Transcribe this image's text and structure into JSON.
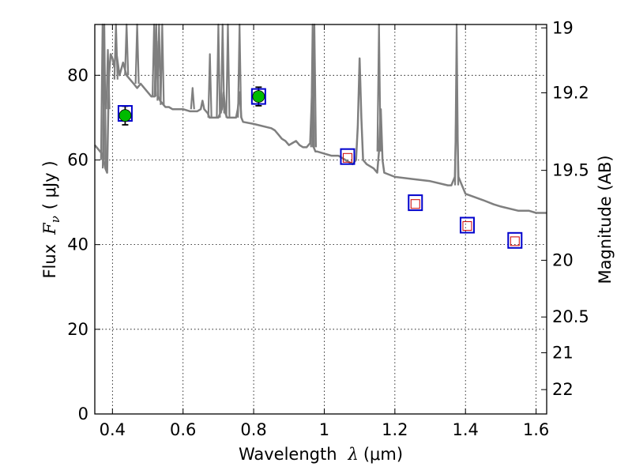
{
  "chart_data": {
    "type": "line",
    "xlabel": "Wavelength",
    "xlabel_symbol": "λ",
    "xlabel_unit": "(μm)",
    "ylabel": "Flux",
    "ylabel_symbol": "F",
    "ylabel_subscript": "ν",
    "ylabel_unit": "( μJy )",
    "y2label": "Magnitude (AB)",
    "xlim": [
      0.35,
      1.63
    ],
    "ylim": [
      0,
      92
    ],
    "grid": true,
    "x_ticks": [
      {
        "value": 0.4,
        "label": "0.4"
      },
      {
        "value": 0.6,
        "label": "0.6"
      },
      {
        "value": 0.8,
        "label": "0.8"
      },
      {
        "value": 1.0,
        "label": "1"
      },
      {
        "value": 1.2,
        "label": "1.2"
      },
      {
        "value": 1.4,
        "label": "1.4"
      },
      {
        "value": 1.6,
        "label": "1.6"
      }
    ],
    "y_ticks": [
      {
        "value": 0,
        "label": "0"
      },
      {
        "value": 20,
        "label": "20"
      },
      {
        "value": 40,
        "label": "40"
      },
      {
        "value": 60,
        "label": "60"
      },
      {
        "value": 80,
        "label": "80"
      }
    ],
    "y2_ticks": [
      {
        "label": "19",
        "magnitude": 19.0
      },
      {
        "label": "19.2",
        "magnitude": 19.2
      },
      {
        "label": "19.5",
        "magnitude": 19.5
      },
      {
        "label": "20",
        "magnitude": 20.0
      },
      {
        "label": "20.5",
        "magnitude": 20.5
      },
      {
        "label": "21",
        "magnitude": 21.0
      },
      {
        "label": "22",
        "magnitude": 22.0
      }
    ],
    "colors": {
      "model": "#7f7f7f",
      "observed_marker": "#00bb00",
      "model_box": "#0000cc",
      "predicted_marker": "#cc0000",
      "errorbar": "#000000"
    },
    "series": [
      {
        "kind": "model_spectrum",
        "x": [
          0.35,
          0.36,
          0.37,
          0.375,
          0.38,
          0.385,
          0.39,
          0.395,
          0.4,
          0.405,
          0.41,
          0.42,
          0.43,
          0.44,
          0.45,
          0.46,
          0.47,
          0.48,
          0.49,
          0.5,
          0.51,
          0.52,
          0.525,
          0.53,
          0.535,
          0.54,
          0.545,
          0.55,
          0.56,
          0.57,
          0.6,
          0.62,
          0.64,
          0.65,
          0.655,
          0.66,
          0.67,
          0.675,
          0.68,
          0.7,
          0.71,
          0.715,
          0.72,
          0.725,
          0.73,
          0.75,
          0.755,
          0.76,
          0.765,
          0.77,
          0.8,
          0.85,
          0.86,
          0.87,
          0.88,
          0.89,
          0.9,
          0.91,
          0.92,
          0.93,
          0.94,
          0.95,
          0.96,
          0.965,
          0.97,
          0.975,
          0.98,
          1.0,
          1.02,
          1.04,
          1.06,
          1.08,
          1.09,
          1.095,
          1.1,
          1.105,
          1.11,
          1.12,
          1.14,
          1.15,
          1.155,
          1.16,
          1.165,
          1.17,
          1.2,
          1.25,
          1.3,
          1.35,
          1.36,
          1.37,
          1.375,
          1.38,
          1.4,
          1.45,
          1.48,
          1.5,
          1.55,
          1.58,
          1.6,
          1.63
        ],
        "y": [
          63.5,
          62.5,
          61.5,
          60,
          58,
          57,
          80,
          85,
          84,
          82,
          86,
          80,
          83,
          80,
          79,
          78,
          77,
          78,
          77,
          76,
          75,
          75,
          88,
          75,
          74,
          73.5,
          73,
          72.5,
          72.5,
          72,
          72,
          71.5,
          71.5,
          72,
          74,
          72,
          71,
          70,
          70,
          70,
          72,
          76,
          71,
          70,
          70,
          70,
          72,
          76,
          70,
          69,
          68.5,
          67.5,
          67,
          66,
          65,
          64.5,
          63.5,
          64,
          64.5,
          63.5,
          63,
          63,
          64,
          75,
          63,
          62,
          62,
          61.5,
          61,
          61,
          60,
          59,
          60,
          68,
          84,
          70,
          60,
          59,
          58,
          57,
          62,
          72,
          60,
          57,
          56,
          55.5,
          55,
          54,
          54,
          56,
          75,
          56,
          52,
          50.5,
          49.5,
          49,
          48,
          48,
          47.5,
          47.5
        ],
        "spikes": [
          {
            "x": 0.372,
            "base": 60,
            "peak": 92
          },
          {
            "x": 0.377,
            "base": 58,
            "peak": 92
          },
          {
            "x": 0.387,
            "base": 72,
            "peak": 86
          },
          {
            "x": 0.41,
            "base": 79,
            "peak": 92
          },
          {
            "x": 0.44,
            "base": 80,
            "peak": 92
          },
          {
            "x": 0.47,
            "base": 78,
            "peak": 92
          },
          {
            "x": 0.518,
            "base": 75,
            "peak": 92
          },
          {
            "x": 0.524,
            "base": 75,
            "peak": 92
          },
          {
            "x": 0.532,
            "base": 74,
            "peak": 92
          },
          {
            "x": 0.541,
            "base": 73,
            "peak": 92
          },
          {
            "x": 0.627,
            "base": 72,
            "peak": 77
          },
          {
            "x": 0.676,
            "base": 70,
            "peak": 85
          },
          {
            "x": 0.7,
            "base": 70,
            "peak": 92
          },
          {
            "x": 0.712,
            "base": 71,
            "peak": 92
          },
          {
            "x": 0.727,
            "base": 70,
            "peak": 92
          },
          {
            "x": 0.76,
            "base": 70,
            "peak": 92
          },
          {
            "x": 0.967,
            "base": 63,
            "peak": 92
          },
          {
            "x": 0.972,
            "base": 63,
            "peak": 92
          },
          {
            "x": 1.155,
            "base": 62,
            "peak": 92
          },
          {
            "x": 1.375,
            "base": 54,
            "peak": 92
          }
        ]
      },
      {
        "kind": "observed",
        "x": [
          0.436,
          0.814
        ],
        "y": [
          70.5,
          75.0
        ],
        "yerr": [
          2.2,
          2.2
        ]
      },
      {
        "kind": "model_photometry",
        "x": [
          0.436,
          0.814,
          1.066,
          1.258,
          1.405,
          1.54
        ],
        "y": [
          71.0,
          75.0,
          60.8,
          49.9,
          44.6,
          41.0
        ]
      },
      {
        "kind": "predicted",
        "x": [
          1.066,
          1.258,
          1.405,
          1.54
        ],
        "y": [
          60.5,
          49.6,
          44.4,
          40.8
        ]
      }
    ]
  }
}
